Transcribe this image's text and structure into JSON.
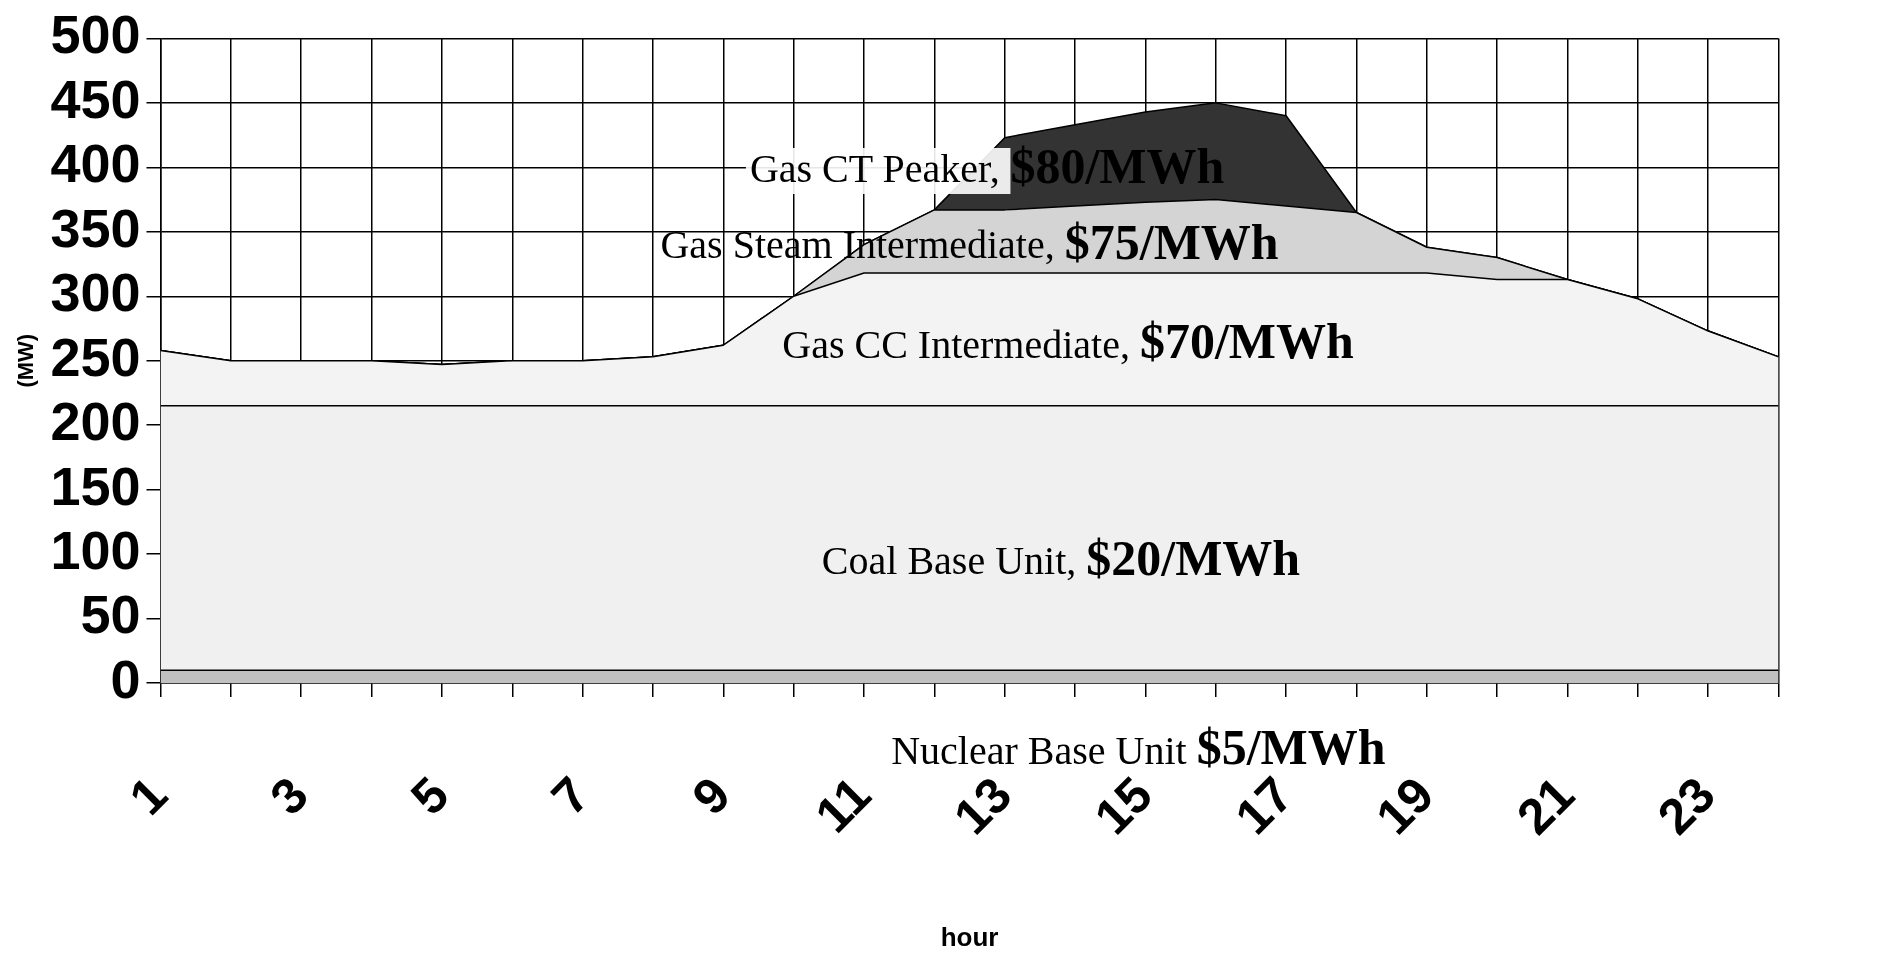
{
  "chart_data": {
    "type": "area",
    "xlabel": "hour",
    "ylabel": "(MW)",
    "x": [
      1,
      2,
      3,
      4,
      5,
      6,
      7,
      8,
      9,
      10,
      11,
      12,
      13,
      14,
      15,
      16,
      17,
      18,
      19,
      20,
      21,
      22,
      23,
      24
    ],
    "series": [
      {
        "color": "#c0c0c0",
        "values": [
          10,
          10,
          10,
          10,
          10,
          10,
          10,
          10,
          10,
          10,
          10,
          10,
          10,
          10,
          10,
          10,
          10,
          10,
          10,
          10,
          10,
          10,
          10,
          10
        ]
      },
      {
        "color": "#f0f0f0",
        "values": [
          205,
          205,
          205,
          205,
          205,
          205,
          205,
          205,
          205,
          205,
          205,
          205,
          205,
          205,
          205,
          205,
          205,
          205,
          205,
          205,
          205,
          205,
          205,
          205
        ]
      },
      {
        "color": "#f3f3f3",
        "values": [
          43,
          35,
          35,
          35,
          32,
          35,
          35,
          38,
          47,
          85,
          103,
          103,
          103,
          103,
          103,
          103,
          103,
          103,
          103,
          98,
          98,
          83,
          58,
          38
        ]
      },
      {
        "color": "#d4d4d4",
        "values": [
          0,
          0,
          0,
          0,
          0,
          0,
          0,
          0,
          0,
          0,
          22,
          49,
          49,
          52,
          55,
          57,
          52,
          47,
          20,
          17,
          0,
          0,
          0,
          0
        ]
      },
      {
        "color": "#333333",
        "values": [
          0,
          0,
          0,
          0,
          0,
          0,
          0,
          0,
          0,
          0,
          0,
          0,
          56,
          63,
          70,
          75,
          70,
          0,
          0,
          0,
          0,
          0,
          0,
          0
        ]
      }
    ],
    "stacked": true,
    "xlim": [
      1,
      24
    ],
    "xticks": [
      1,
      {
        "value": 2,
        "label": null
      },
      3,
      {
        "value": 4,
        "label": null
      },
      5,
      {
        "value": 6,
        "label": null
      },
      7,
      {
        "value": 8,
        "label": null
      },
      9,
      {
        "value": 10,
        "label": null
      },
      11,
      {
        "value": 12,
        "label": null
      },
      13,
      {
        "value": 14,
        "label": null
      },
      15,
      {
        "value": 16,
        "label": null
      },
      17,
      {
        "value": 18,
        "label": null
      },
      19,
      {
        "value": 20,
        "label": null
      },
      21,
      {
        "value": 22,
        "label": null
      },
      23,
      {
        "value": 24,
        "label": null
      }
    ],
    "ylim": [
      0,
      500
    ],
    "yticks": [
      0,
      50,
      100,
      150,
      200,
      250,
      300,
      350,
      400,
      450,
      500
    ],
    "grid": true,
    "legend": false,
    "annotations": [
      "Gas CT Peaker, $80/MWh",
      "Gas Steam Intermediate, $75/MWh",
      "Gas CC Intermediate, $70/MWh",
      "Coal Base Unit, $20/MWh",
      "Nuclear Base Unit $5/MWh"
    ]
  }
}
